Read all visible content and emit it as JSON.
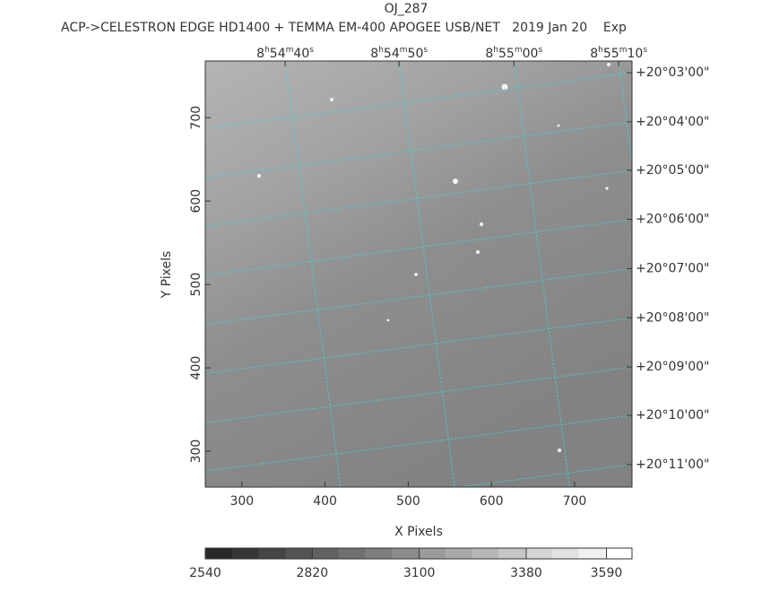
{
  "chart_data": {
    "type": "image",
    "title": "OJ_287",
    "subtitle": "ACP->CELESTRON EDGE HD1400 + TEMMA EM-400 APOGEE USB/NET   2019 Jan 20    Exp",
    "x_label": "X Pixels",
    "y_label": "Y Pixels",
    "xlim": [
      256,
      769
    ],
    "ylim": [
      257,
      768
    ],
    "xticks": [
      300,
      400,
      500,
      600,
      700
    ],
    "yticks": [
      300,
      400,
      500,
      600,
      700
    ],
    "top_ticks": [
      {
        "value": 352,
        "label": "8h54m40s"
      },
      {
        "value": 489,
        "label": "8h54m50s"
      },
      {
        "value": 627,
        "label": "8h55m00s"
      },
      {
        "value": 753,
        "label": "8h55m10s"
      }
    ],
    "right_ticks": [
      {
        "value": 754,
        "label": "+20°03'00\""
      },
      {
        "value": 695,
        "label": "+20°04'00\""
      },
      {
        "value": 637,
        "label": "+20°05'00\""
      },
      {
        "value": 578,
        "label": "+20°06'00\""
      },
      {
        "value": 519,
        "label": "+20°07'00\""
      },
      {
        "value": 460,
        "label": "+20°08'00\""
      },
      {
        "value": 401,
        "label": "+20°09'00\""
      },
      {
        "value": 343,
        "label": "+20°10'00\""
      },
      {
        "value": 284,
        "label": "+20°11'00\""
      }
    ],
    "grid": true,
    "grid_color": "#3fd4d4",
    "colorbar": {
      "clim": [
        2540,
        3657
      ],
      "ticks": [
        2540,
        2820,
        3100,
        3380,
        3590
      ]
    }
  }
}
